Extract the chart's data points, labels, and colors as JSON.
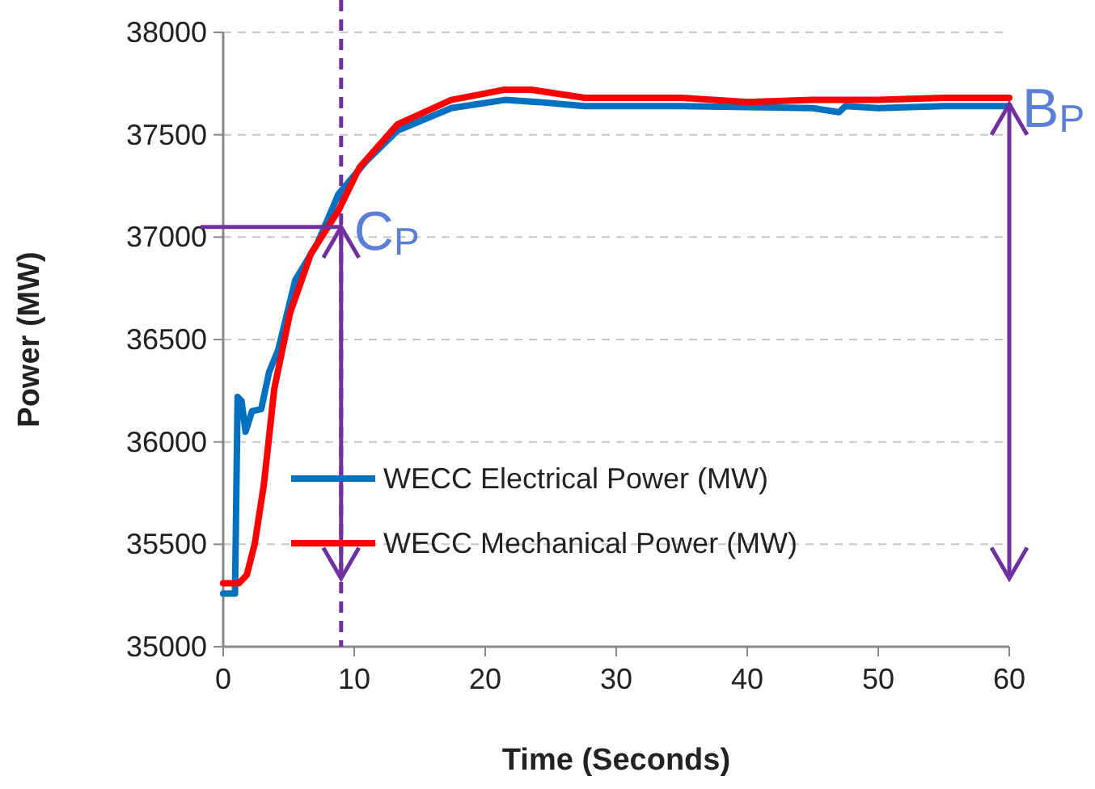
{
  "chart_data": {
    "type": "line",
    "xlabel": "Time (Seconds)",
    "ylabel": "Power (MW)",
    "xlim": [
      0,
      60
    ],
    "xticks": [
      0,
      10,
      20,
      30,
      40,
      50,
      60
    ],
    "ylim": [
      35000,
      38000
    ],
    "yticks": [
      35000,
      35500,
      36000,
      36500,
      37000,
      37500,
      38000
    ],
    "grid": "y",
    "legend": "bottom",
    "line_style": "solid",
    "marker": "none",
    "series": [
      {
        "name": "WECC Electrical Power (MW)",
        "color": "#0070c0",
        "x": [
          0,
          0.9,
          1.1,
          1.4,
          1.7,
          2.2,
          2.9,
          3.5,
          4.2,
          5.5,
          7.2,
          8.8,
          10.9,
          13.3,
          17.4,
          21.5,
          24,
          27.6,
          35,
          45,
          47,
          47.5,
          50,
          55,
          60
        ],
        "values": [
          35260,
          35260,
          36220,
          36200,
          36050,
          36150,
          36160,
          36340,
          36450,
          36790,
          36970,
          37210,
          37370,
          37520,
          37630,
          37670,
          37660,
          37640,
          37640,
          37630,
          37610,
          37640,
          37630,
          37640,
          37640
        ]
      },
      {
        "name": "WECC Mechanical Power (MW)",
        "color": "#ff0000",
        "x": [
          0,
          1.2,
          1.8,
          2.4,
          3.1,
          3.9,
          5.1,
          6.7,
          8.8,
          10.4,
          13.3,
          17.4,
          21.5,
          23.5,
          27.6,
          35,
          40,
          45,
          50,
          55,
          60
        ],
        "values": [
          35310,
          35310,
          35350,
          35500,
          35790,
          36260,
          36630,
          36920,
          37130,
          37340,
          37550,
          37670,
          37720,
          37720,
          37680,
          37680,
          37660,
          37670,
          37670,
          37680,
          37680
        ]
      }
    ],
    "ref_lines": [
      {
        "axis": "x",
        "value": 9,
        "color": "#7030a0",
        "line_style": "dashed"
      }
    ],
    "annotations": [
      {
        "text": "C$_{P}$",
        "x": 9,
        "y": 37050
      },
      {
        "text": "B$_{P}$",
        "x": 60,
        "y": 37650
      }
    ]
  }
}
